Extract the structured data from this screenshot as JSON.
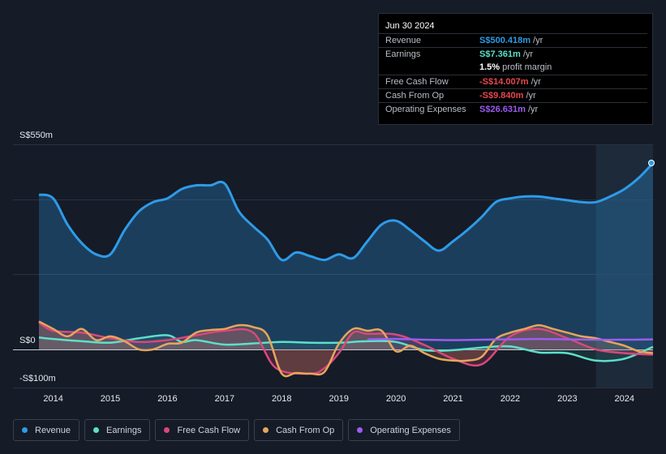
{
  "tooltip": {
    "date": "Jun 30 2024",
    "rows": [
      {
        "label": "Revenue",
        "value": "S$500.418m",
        "suffix": " /yr",
        "color": "#2e9be8"
      },
      {
        "label": "Earnings",
        "value": "S$7.361m",
        "suffix": " /yr",
        "color": "#5ce0c9"
      },
      {
        "label": "",
        "value": "1.5%",
        "suffix": " profit margin",
        "color": "#ffffff"
      },
      {
        "label": "Free Cash Flow",
        "value": "-S$14.007m",
        "suffix": " /yr",
        "color": "#e8474f"
      },
      {
        "label": "Cash From Op",
        "value": "-S$9.840m",
        "suffix": " /yr",
        "color": "#e8474f"
      },
      {
        "label": "Operating Expenses",
        "value": "S$26.631m",
        "suffix": " /yr",
        "color": "#9d5cf0"
      }
    ]
  },
  "axis": {
    "top_label": "S$550m",
    "zero_label": "S$0",
    "bottom_label": "-S$100m"
  },
  "legend": [
    {
      "label": "Revenue",
      "color": "#2e9be8"
    },
    {
      "label": "Earnings",
      "color": "#5ce0c9"
    },
    {
      "label": "Free Cash Flow",
      "color": "#d9487a"
    },
    {
      "label": "Cash From Op",
      "color": "#e8a55c"
    },
    {
      "label": "Operating Expenses",
      "color": "#9d5cf0"
    }
  ],
  "chart_data": {
    "type": "line",
    "title": "",
    "ylim": [
      -100,
      550
    ],
    "x_tick_labels": [
      "2014",
      "2015",
      "2016",
      "2017",
      "2018",
      "2019",
      "2020",
      "2021",
      "2022",
      "2023",
      "2024"
    ],
    "x_tick_values": [
      2014,
      2015,
      2016,
      2017,
      2018,
      2019,
      2020,
      2021,
      2022,
      2023,
      2024
    ],
    "xlim": [
      2013.75,
      2024.5
    ],
    "highlight_start": 2023.5,
    "series": [
      {
        "name": "Revenue",
        "color": "#2e9be8",
        "x": [
          2013.75,
          2014.0,
          2014.25,
          2014.5,
          2014.75,
          2015.0,
          2015.25,
          2015.5,
          2015.75,
          2016.0,
          2016.25,
          2016.5,
          2016.75,
          2017.0,
          2017.25,
          2017.5,
          2017.75,
          2018.0,
          2018.25,
          2018.5,
          2018.75,
          2019.0,
          2019.25,
          2019.5,
          2019.75,
          2020.0,
          2020.25,
          2020.5,
          2020.75,
          2021.0,
          2021.25,
          2021.5,
          2021.75,
          2022.0,
          2022.25,
          2022.5,
          2022.75,
          2023.0,
          2023.25,
          2023.5,
          2023.75,
          2024.0,
          2024.25,
          2024.5
        ],
        "values": [
          415,
          405,
          335,
          285,
          255,
          255,
          320,
          370,
          395,
          405,
          430,
          440,
          440,
          445,
          370,
          330,
          295,
          240,
          260,
          250,
          240,
          255,
          245,
          290,
          335,
          345,
          320,
          290,
          265,
          290,
          320,
          355,
          395,
          405,
          410,
          410,
          405,
          400,
          395,
          395,
          410,
          430,
          460,
          500
        ]
      },
      {
        "name": "Earnings",
        "color": "#5ce0c9",
        "x": [
          2013.75,
          2014.0,
          2014.5,
          2015.0,
          2015.5,
          2016.0,
          2016.25,
          2016.5,
          2017.0,
          2017.5,
          2018.0,
          2018.5,
          2019.0,
          2019.5,
          2020.0,
          2020.5,
          2021.0,
          2021.5,
          2022.0,
          2022.5,
          2023.0,
          2023.5,
          2024.0,
          2024.5
        ],
        "values": [
          32,
          28,
          22,
          18,
          30,
          38,
          20,
          25,
          13,
          16,
          20,
          18,
          18,
          22,
          20,
          -2,
          -2,
          5,
          8,
          -8,
          -10,
          -30,
          -25,
          7
        ]
      },
      {
        "name": "Free Cash Flow",
        "color": "#d9487a",
        "x": [
          2013.75,
          2014.0,
          2014.5,
          2015.0,
          2015.5,
          2016.0,
          2016.5,
          2017.0,
          2017.5,
          2017.9,
          2018.5,
          2018.75,
          2019.0,
          2019.25,
          2019.5,
          2020.0,
          2020.5,
          2021.0,
          2021.5,
          2022.0,
          2022.5,
          2023.0,
          2023.5,
          2024.0,
          2024.5
        ],
        "values": [
          72,
          50,
          45,
          30,
          20,
          25,
          38,
          50,
          45,
          -50,
          -65,
          -50,
          -10,
          45,
          42,
          40,
          12,
          -25,
          -40,
          35,
          55,
          30,
          0,
          -10,
          -14
        ]
      },
      {
        "name": "Cash From Op",
        "color": "#e8a55c",
        "x": [
          2013.75,
          2014.0,
          2014.25,
          2014.5,
          2014.75,
          2015.0,
          2015.25,
          2015.5,
          2015.75,
          2016.0,
          2016.25,
          2016.5,
          2016.75,
          2017.0,
          2017.25,
          2017.5,
          2017.75,
          2018.0,
          2018.25,
          2018.5,
          2018.75,
          2019.0,
          2019.25,
          2019.5,
          2019.75,
          2020.0,
          2020.25,
          2020.5,
          2020.75,
          2021.0,
          2021.25,
          2021.5,
          2021.75,
          2022.0,
          2022.25,
          2022.5,
          2022.75,
          2023.0,
          2023.25,
          2023.5,
          2023.75,
          2024.0,
          2024.25,
          2024.5
        ],
        "values": [
          75,
          55,
          35,
          55,
          25,
          35,
          22,
          0,
          0,
          15,
          18,
          45,
          52,
          55,
          65,
          60,
          38,
          -65,
          -63,
          -65,
          -60,
          15,
          55,
          50,
          50,
          -5,
          10,
          -10,
          -25,
          -30,
          -30,
          -20,
          28,
          45,
          55,
          65,
          55,
          45,
          35,
          30,
          20,
          10,
          -5,
          -10
        ]
      },
      {
        "name": "Operating Expenses",
        "color": "#9d5cf0",
        "x": [
          2019.5,
          2020.0,
          2020.5,
          2021.0,
          2021.5,
          2022.0,
          2022.5,
          2023.0,
          2023.5,
          2024.0,
          2024.5
        ],
        "values": [
          27,
          28,
          26,
          25,
          26,
          27,
          28,
          27,
          26,
          26,
          27
        ]
      }
    ]
  }
}
